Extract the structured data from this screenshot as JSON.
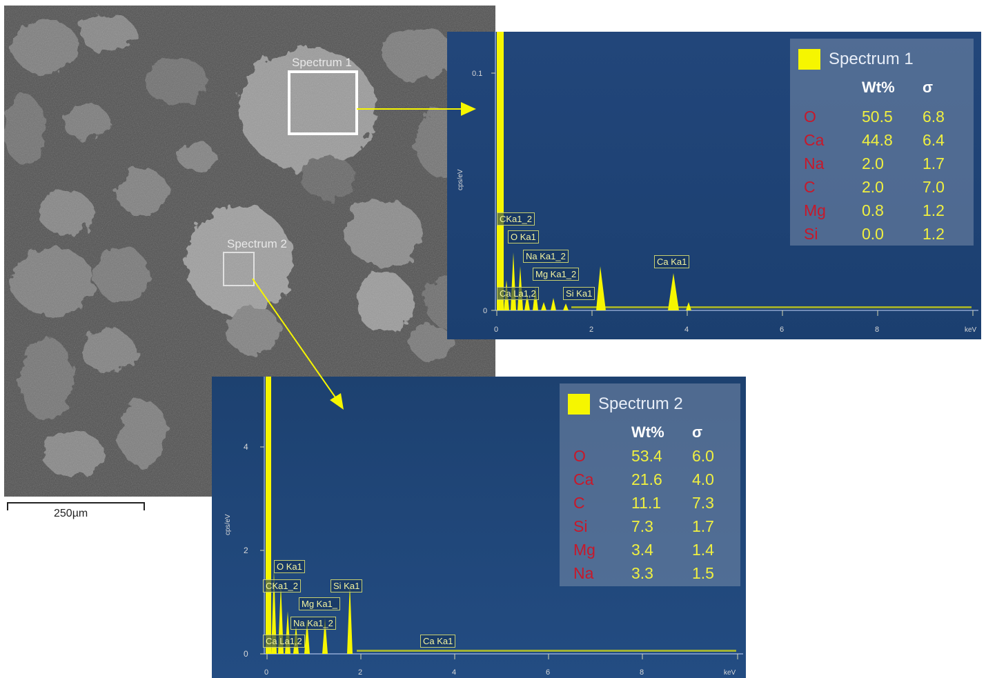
{
  "micrograph": {
    "scale_bar_label": "250µm",
    "region_labels": [
      "Spectrum 1",
      "Spectrum 2"
    ]
  },
  "colors": {
    "panel_background": "#1f4a7e",
    "spectrum_line": "#f6f600",
    "element_text": "#c8182a",
    "value_text": "#f0f040"
  },
  "spectra": [
    {
      "title": "Spectrum 1",
      "y_axis_label": "cps/eV",
      "x_axis_unit": "keV",
      "y_ticks": [
        "0.1",
        "0"
      ],
      "x_ticks": [
        "0",
        "2",
        "4",
        "6",
        "8"
      ],
      "header": {
        "wt": "Wt%",
        "sigma": "σ"
      },
      "rows": [
        {
          "element": "O",
          "wt": "50.5",
          "sigma": "6.8"
        },
        {
          "element": "Ca",
          "wt": "44.8",
          "sigma": "6.4"
        },
        {
          "element": "Na",
          "wt": "2.0",
          "sigma": "1.7"
        },
        {
          "element": "C",
          "wt": "2.0",
          "sigma": "7.0"
        },
        {
          "element": "Mg",
          "wt": "0.8",
          "sigma": "1.2"
        },
        {
          "element": "Si",
          "wt": "0.0",
          "sigma": "1.2"
        }
      ],
      "peak_labels": [
        "CKa1_2",
        "O Ka1",
        "Na Ka1_2",
        "Mg Ka1_2",
        "Ca La1,2",
        "Si Ka1",
        "Ca Ka1"
      ]
    },
    {
      "title": "Spectrum 2",
      "y_axis_label": "cps/eV",
      "x_axis_unit": "keV",
      "y_ticks": [
        "4",
        "2",
        "0"
      ],
      "x_ticks": [
        "0",
        "2",
        "4",
        "6",
        "8"
      ],
      "header": {
        "wt": "Wt%",
        "sigma": "σ"
      },
      "rows": [
        {
          "element": "O",
          "wt": "53.4",
          "sigma": "6.0"
        },
        {
          "element": "Ca",
          "wt": "21.6",
          "sigma": "4.0"
        },
        {
          "element": "C",
          "wt": "11.1",
          "sigma": "7.3"
        },
        {
          "element": "Si",
          "wt": "7.3",
          "sigma": "1.7"
        },
        {
          "element": "Mg",
          "wt": "3.4",
          "sigma": "1.4"
        },
        {
          "element": "Na",
          "wt": "3.3",
          "sigma": "1.5"
        }
      ],
      "peak_labels": [
        "O Ka1",
        "CKa1_2",
        "Si Ka1",
        "Mg Ka1_",
        "Na Ka1_2",
        "Ca La1,2",
        "Ca Ka1"
      ]
    }
  ]
}
